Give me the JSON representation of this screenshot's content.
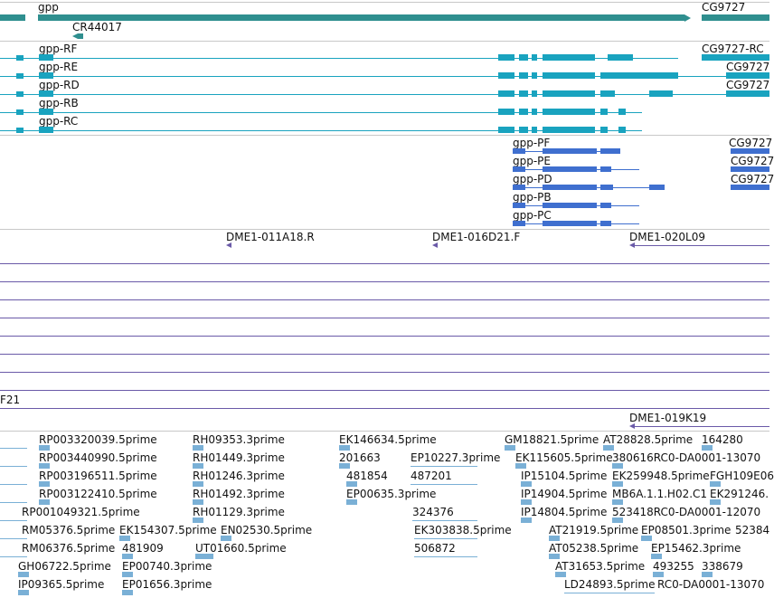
{
  "colors": {
    "gene": "#2f8f8f",
    "transcript": "#19a3bf",
    "protein": "#3f6fcf",
    "clone": "#6a5aa8",
    "est": "#7ab0d6",
    "separator": "#c8c8c8"
  },
  "genes": {
    "gpp": "gpp",
    "cr": "CR44017",
    "cg9727": "CG9727"
  },
  "transcripts": {
    "rf": "gpp-RF",
    "re": "gpp-RE",
    "rd": "gpp-RD",
    "rb": "gpp-RB",
    "rc": "gpp-RC",
    "cg_rc": "CG9727-RC",
    "cg_r1": "CG9727",
    "cg_r2": "CG9727"
  },
  "proteins": {
    "pf": "gpp-PF",
    "pe": "gpp-PE",
    "pd": "gpp-PD",
    "pb": "gpp-PB",
    "pc": "gpp-PC",
    "cg_p1": "CG9727",
    "cg_p2": "CG9727",
    "cg_p3": "CG9727"
  },
  "clones": {
    "c1": "DME1-011A18.R",
    "c2": "DME1-016D21.F",
    "c3": "DME1-020L09",
    "c4": "F21",
    "c5": "DME1-019K19"
  },
  "ests": {
    "r1": [
      "RP003320039.5prime",
      "RH09353.3prime",
      "EK146634.5prime",
      "GM18821.5prime",
      "AT28828.5prime",
      "164280"
    ],
    "r2": [
      "RP003440990.5prime",
      "RH01449.3prime",
      "201663",
      "EP10227.3prime",
      "EK115605.5prime",
      "380616RC0-DA0001-13070"
    ],
    "r3": [
      "RP003196511.5prime",
      "RH01246.3prime",
      "481854",
      "487201",
      "IP15104.5prime",
      "EK259948.5prime",
      "FGH109E06"
    ],
    "r4": [
      "RP003122410.5prime",
      "RH01492.3prime",
      "EP00635.3prime",
      "IP14904.5prime",
      "MB6A.1.1.H02.C1",
      "EK291246."
    ],
    "r5": [
      "RP001049321.5prime",
      "RH01129.3prime",
      "324376",
      "IP14804.5prime",
      "523418RC0-DA0001-12070"
    ],
    "r6": [
      "RM05376.5prime",
      "EK154307.5prime",
      "EN02530.5prime",
      "EK303838.5prime",
      "AT21919.5prime",
      "EP08501.3prime",
      "52384"
    ],
    "r7": [
      "RM06376.5prime",
      "481909",
      "UT01660.5prime",
      "506872",
      "AT05238.5prime",
      "EP15462.3prime"
    ],
    "r8": [
      "GH06722.5prime",
      "EP00740.3prime",
      "AT31653.5prime",
      "493255",
      "338679"
    ],
    "r9": [
      "IP09365.5prime",
      "EP01656.3prime",
      "LD24893.5prime",
      "RC0-DA0001-13070"
    ]
  }
}
